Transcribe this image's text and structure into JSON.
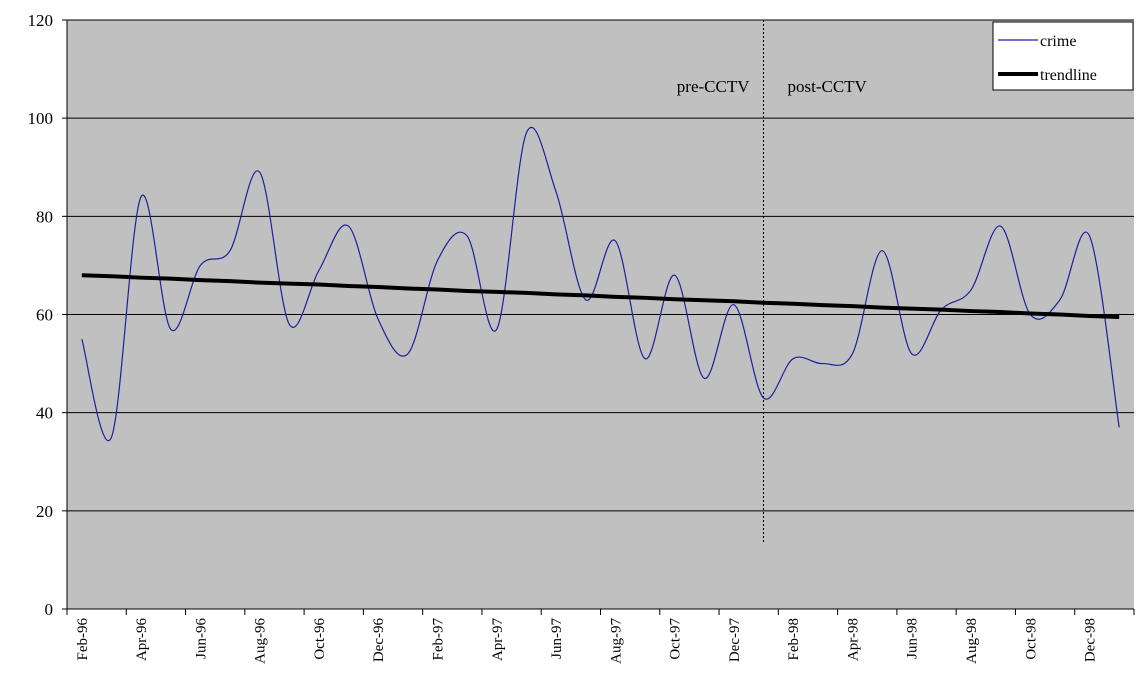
{
  "chart_data": {
    "type": "line",
    "categories": [
      "Feb-96",
      null,
      "Apr-96",
      null,
      "Jun-96",
      null,
      "Aug-96",
      null,
      "Oct-96",
      null,
      "Dec-96",
      null,
      "Feb-97",
      null,
      "Apr-97",
      null,
      "Jun-97",
      null,
      "Aug-97",
      null,
      "Oct-97",
      null,
      "Dec-97",
      null,
      "Feb-98",
      null,
      "Apr-98",
      null,
      "Jun-98",
      null,
      "Aug-98",
      null,
      "Oct-98",
      null,
      "Dec-98",
      null
    ],
    "series": [
      {
        "name": "crime",
        "color": "#1f1f9c",
        "width": 1.2,
        "smooth": true,
        "values": [
          55,
          35,
          84,
          57,
          70,
          73,
          89,
          58,
          69,
          78,
          59,
          52,
          71,
          76,
          57,
          97,
          85,
          63,
          75,
          51,
          68,
          47,
          62,
          43,
          51,
          50,
          52,
          73,
          52,
          61,
          65,
          78,
          60,
          63,
          76,
          37
        ]
      },
      {
        "name": "trendline",
        "color": "#000000",
        "width": 4,
        "smooth": false,
        "values": [
          68.0,
          67.8,
          67.5,
          67.3,
          67.0,
          66.8,
          66.5,
          66.3,
          66.1,
          65.8,
          65.6,
          65.3,
          65.1,
          64.8,
          64.6,
          64.4,
          64.1,
          63.9,
          63.6,
          63.4,
          63.1,
          62.9,
          62.7,
          62.4,
          62.2,
          61.9,
          61.7,
          61.4,
          61.2,
          61.0,
          60.7,
          60.5,
          60.2,
          60.0,
          59.7,
          59.5
        ]
      }
    ],
    "ylim": [
      0,
      120
    ],
    "yticks": [
      0,
      20,
      40,
      60,
      80,
      100,
      120
    ],
    "grid": true,
    "background": "#c0c0c0",
    "legend": "top-right",
    "divider_index": 23,
    "annotations": [
      "pre-CCTV",
      "post-CCTV"
    ]
  }
}
